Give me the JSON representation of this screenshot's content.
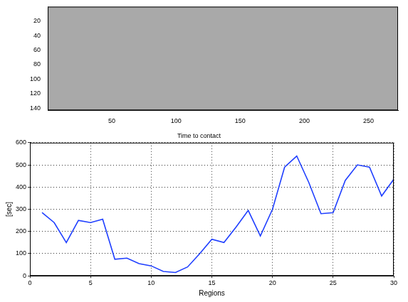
{
  "chart_data": [
    {
      "type": "image",
      "xlim": [
        0,
        273
      ],
      "xticks": [
        50,
        100,
        150,
        200,
        250
      ],
      "ylim": [
        0,
        143
      ],
      "yticks": [
        20,
        40,
        60,
        80,
        100,
        120,
        140
      ]
    },
    {
      "type": "line",
      "title": "Time to contact",
      "x_label": "Regions",
      "y_label": "[sec]",
      "x": [
        1,
        2,
        3,
        4,
        5,
        6,
        7,
        8,
        9,
        10,
        11,
        12,
        13,
        14,
        15,
        16,
        17,
        18,
        19,
        20,
        21,
        22,
        23,
        24,
        25,
        26,
        27,
        28,
        29,
        30
      ],
      "values": [
        285,
        240,
        150,
        250,
        240,
        255,
        75,
        80,
        55,
        45,
        20,
        15,
        40,
        100,
        165,
        150,
        220,
        295,
        180,
        300,
        490,
        540,
        420,
        280,
        285,
        430,
        500,
        490,
        360,
        435
      ],
      "color": "#1f3fff",
      "xlim": [
        0,
        30
      ],
      "xticks": [
        0,
        5,
        10,
        15,
        20,
        25,
        30
      ],
      "ylim": [
        0,
        600
      ],
      "yticks": [
        0,
        100,
        200,
        300,
        400,
        500,
        600
      ],
      "grid": true
    }
  ]
}
